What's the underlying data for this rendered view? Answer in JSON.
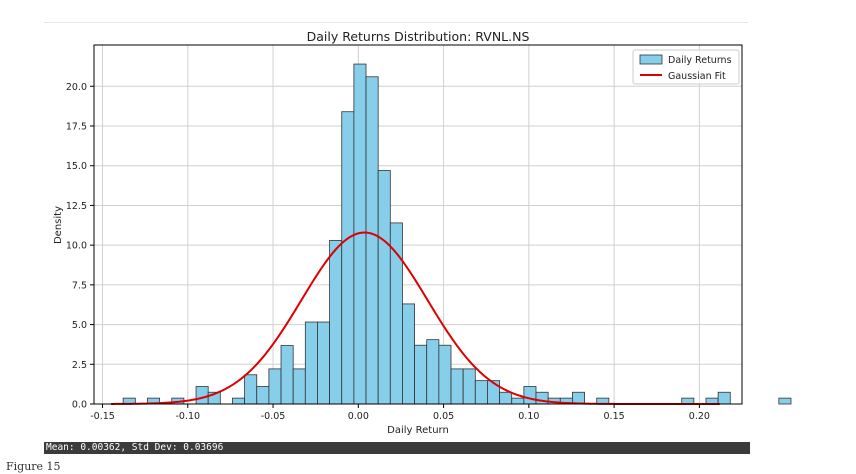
{
  "figure_caption": "Figure 15",
  "status_bar": {
    "text": "Mean: 0.00362, Std Dev: 0.03696"
  },
  "chart_data": {
    "type": "histogram",
    "title": "Daily Returns Distribution: RVNL.NS",
    "xlabel": "Daily Return",
    "ylabel": "Density",
    "xlim": [
      -0.155,
      0.225
    ],
    "ylim": [
      0,
      22.6
    ],
    "grid": true,
    "legend_position": "top-right",
    "x_ticks": [
      -0.15,
      -0.1,
      -0.05,
      0.0,
      0.05,
      0.1,
      0.15,
      0.2
    ],
    "x_tick_labels": [
      "-0.15",
      "-0.10",
      "-0.05",
      "0.00",
      "0.05",
      "0.10",
      "0.15",
      "0.20"
    ],
    "y_ticks": [
      0.0,
      2.5,
      5.0,
      7.5,
      10.0,
      12.5,
      15.0,
      17.5,
      20.0
    ],
    "y_tick_labels": [
      "0.0",
      "2.5",
      "5.0",
      "7.5",
      "10.0",
      "12.5",
      "15.0",
      "17.5",
      "20.0"
    ],
    "bin_start": -0.145,
    "bin_width": 0.00712,
    "densities": [
      0.0,
      0.37,
      0.0,
      0.37,
      0.0,
      0.37,
      0.0,
      1.1,
      0.74,
      0.0,
      0.37,
      1.84,
      1.1,
      2.21,
      3.68,
      2.21,
      5.16,
      5.16,
      10.3,
      18.4,
      21.4,
      20.6,
      14.7,
      11.4,
      6.3,
      3.7,
      4.05,
      3.7,
      2.21,
      2.21,
      1.47,
      1.47,
      0.74,
      0.37,
      1.1,
      0.74,
      0.37,
      0.37,
      0.74,
      0.0,
      0.37,
      0.0,
      0.0,
      0.0,
      0.0,
      0.0,
      0.0,
      0.37,
      0.0,
      0.37,
      0.74,
      0.0,
      0.0,
      0.0,
      0.0,
      0.37,
      0.0,
      0.0,
      0.0,
      0.0
    ],
    "gaussian_fit": {
      "mean": 0.00362,
      "std": 0.03696,
      "x_range": [
        -0.145,
        0.212
      ]
    },
    "series": [
      {
        "name": "Daily Returns",
        "kind": "bar",
        "color": "#87ceeb"
      },
      {
        "name": "Gaussian Fit",
        "kind": "line",
        "color": "#dd0000"
      }
    ]
  }
}
